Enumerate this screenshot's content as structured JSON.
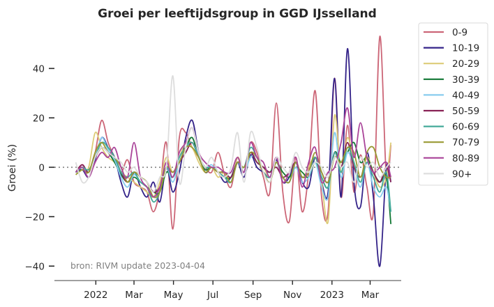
{
  "chart_data": {
    "type": "line",
    "title": "Groei per leeftijdsgroup in GGD IJsselland",
    "xlabel": "",
    "ylabel": "Groei (%)",
    "ylim": [
      -45,
      57
    ],
    "yticks": [
      40,
      20,
      0,
      -20,
      -40
    ],
    "ytick_labels": [
      "40",
      "20",
      "0",
      "−20",
      "−40"
    ],
    "x_unit": "days since 2021-12-01",
    "xlim": [
      -33,
      503
    ],
    "xticks": [
      31,
      90,
      151,
      212,
      274,
      335,
      396,
      455
    ],
    "xtick_labels": [
      "2022",
      "Mar",
      "May",
      "Jul",
      "Sep",
      "Nov",
      "2023",
      "Mar"
    ],
    "reference_line": 0,
    "annotation": "bron: RIVM update 2023-04-04",
    "legend_position": "outside-top-right",
    "x": [
      0,
      10,
      20,
      30,
      40,
      50,
      60,
      70,
      80,
      90,
      100,
      110,
      120,
      130,
      140,
      150,
      160,
      170,
      180,
      190,
      200,
      210,
      220,
      230,
      240,
      250,
      260,
      270,
      280,
      290,
      300,
      310,
      320,
      330,
      340,
      350,
      360,
      370,
      380,
      390,
      400,
      410,
      420,
      430,
      440,
      450,
      460,
      470,
      480,
      487
    ],
    "series": [
      {
        "name": "0-9",
        "color": "#cc6677",
        "values": [
          -2,
          1,
          -2,
          6,
          19,
          10,
          4,
          -2,
          3,
          -6,
          -8,
          -10,
          -18,
          -9,
          10,
          -25,
          12,
          14,
          8,
          4,
          0,
          -2,
          6,
          -3,
          -8,
          4,
          -2,
          10,
          6,
          -4,
          -10,
          26,
          -10,
          -22,
          4,
          -18,
          -2,
          31,
          -12,
          -18,
          36,
          -12,
          17,
          -10,
          5,
          -8,
          -18,
          53,
          -4,
          9
        ]
      },
      {
        "name": "10-19",
        "color": "#332288",
        "values": [
          -2,
          -1,
          -4,
          3,
          12,
          8,
          4,
          -6,
          -12,
          -2,
          -8,
          -12,
          -6,
          -14,
          0,
          -10,
          -2,
          12,
          19,
          6,
          -2,
          0,
          -2,
          -6,
          -4,
          2,
          -4,
          5,
          0,
          -2,
          -4,
          3,
          -6,
          -4,
          2,
          -6,
          -8,
          4,
          -6,
          -10,
          36,
          -12,
          48,
          -6,
          -16,
          6,
          -12,
          -40,
          0,
          -6
        ]
      },
      {
        "name": "20-29",
        "color": "#ddcc77",
        "values": [
          -3,
          -1,
          0,
          14,
          8,
          4,
          2,
          -2,
          -4,
          -6,
          -8,
          -10,
          -12,
          -6,
          4,
          -2,
          4,
          10,
          8,
          2,
          -2,
          0,
          -4,
          -2,
          -6,
          4,
          -2,
          6,
          2,
          0,
          -4,
          2,
          -4,
          -6,
          2,
          -4,
          0,
          4,
          -6,
          -22,
          21,
          -2,
          12,
          2,
          -6,
          4,
          -2,
          -8,
          -4,
          10
        ]
      },
      {
        "name": "30-39",
        "color": "#117733",
        "values": [
          -2,
          0,
          -2,
          4,
          8,
          6,
          2,
          -3,
          -6,
          -4,
          -6,
          -8,
          -10,
          -10,
          -2,
          -4,
          2,
          8,
          12,
          4,
          -1,
          0,
          -2,
          -4,
          -4,
          2,
          0,
          6,
          2,
          0,
          -2,
          2,
          -2,
          -4,
          0,
          -2,
          -4,
          2,
          -4,
          -8,
          6,
          2,
          6,
          10,
          2,
          4,
          -2,
          -6,
          -4,
          -23
        ]
      },
      {
        "name": "40-49",
        "color": "#88ccee",
        "values": [
          -2,
          0,
          -2,
          4,
          12,
          7,
          3,
          -4,
          -8,
          -3,
          -6,
          -8,
          -12,
          -10,
          0,
          -6,
          2,
          8,
          10,
          5,
          0,
          1,
          -2,
          -4,
          -6,
          2,
          -2,
          4,
          4,
          -2,
          -4,
          2,
          -4,
          -6,
          0,
          -6,
          -4,
          2,
          -8,
          -12,
          14,
          -4,
          6,
          0,
          -8,
          2,
          -8,
          -12,
          -8,
          -18
        ]
      },
      {
        "name": "50-59",
        "color": "#882255",
        "values": [
          -2,
          1,
          -2,
          4,
          8,
          6,
          4,
          -2,
          -6,
          -2,
          -4,
          -6,
          -10,
          -8,
          0,
          -2,
          2,
          6,
          10,
          4,
          0,
          0,
          -2,
          -2,
          -4,
          2,
          0,
          6,
          2,
          0,
          -2,
          0,
          -4,
          -2,
          2,
          -4,
          -2,
          4,
          -2,
          -6,
          6,
          0,
          10,
          0,
          -4,
          2,
          -2,
          -6,
          0,
          -6
        ]
      },
      {
        "name": "60-69",
        "color": "#44aa99",
        "values": [
          -2,
          0,
          -1,
          4,
          10,
          8,
          4,
          -2,
          -4,
          -2,
          -6,
          -8,
          -14,
          -10,
          0,
          -4,
          4,
          8,
          10,
          4,
          0,
          0,
          -2,
          -4,
          -6,
          2,
          0,
          8,
          4,
          -2,
          -4,
          2,
          -4,
          -6,
          2,
          -4,
          -2,
          4,
          -4,
          -8,
          6,
          -2,
          8,
          2,
          -6,
          2,
          -4,
          -10,
          -2,
          -18
        ]
      },
      {
        "name": "70-79",
        "color": "#999933",
        "values": [
          -3,
          -1,
          -2,
          6,
          10,
          6,
          4,
          0,
          -6,
          -2,
          -4,
          -6,
          -12,
          -10,
          0,
          -2,
          2,
          8,
          8,
          4,
          -2,
          0,
          -2,
          -2,
          -6,
          2,
          0,
          6,
          4,
          -2,
          -6,
          2,
          -4,
          -6,
          2,
          -4,
          -2,
          6,
          -2,
          -6,
          4,
          2,
          8,
          6,
          -4,
          6,
          8,
          0,
          -4,
          -4
        ]
      },
      {
        "name": "80-89",
        "color": "#aa4499",
        "values": [
          -2,
          0,
          -4,
          2,
          6,
          4,
          8,
          0,
          -4,
          10,
          -4,
          -8,
          -12,
          -8,
          2,
          -4,
          6,
          10,
          16,
          6,
          2,
          0,
          0,
          -2,
          -2,
          4,
          -2,
          10,
          4,
          2,
          -4,
          4,
          -6,
          -2,
          4,
          -8,
          2,
          8,
          -6,
          -2,
          0,
          10,
          24,
          4,
          18,
          4,
          -2,
          0,
          2,
          -4
        ]
      },
      {
        "name": "90+",
        "color": "#dddddd",
        "values": [
          2,
          -6,
          -4,
          4,
          8,
          6,
          4,
          2,
          -2,
          0,
          -4,
          -6,
          -10,
          -4,
          0,
          37,
          -6,
          8,
          16,
          6,
          0,
          4,
          -2,
          -4,
          0,
          14,
          -6,
          14,
          8,
          -2,
          -6,
          4,
          0,
          -2,
          6,
          0,
          -2,
          2,
          0,
          -4,
          4,
          0,
          2,
          -6,
          4,
          0,
          2,
          -4,
          0,
          2
        ]
      }
    ]
  }
}
